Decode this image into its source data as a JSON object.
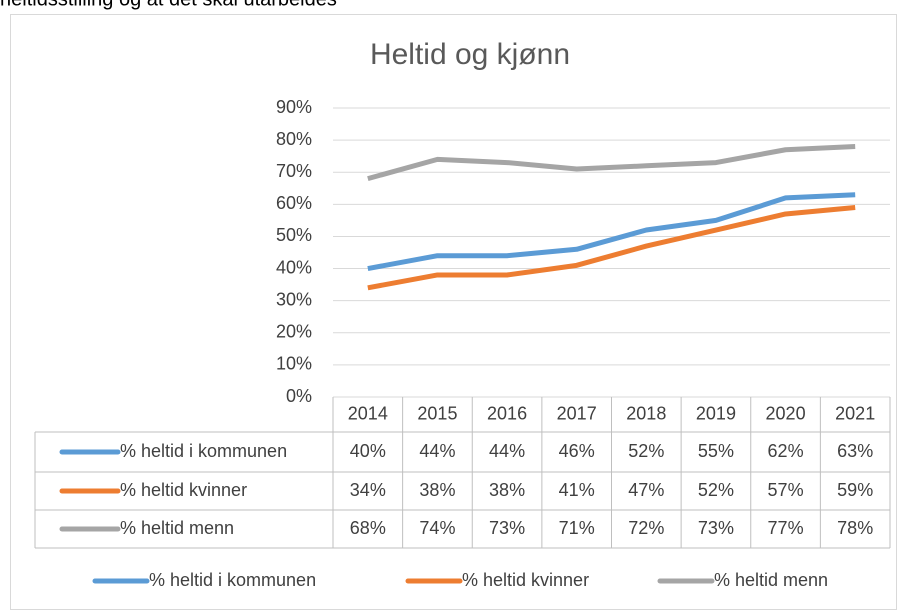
{
  "text_above": "heltidsstilling og at det skal utarbeides",
  "chart_data": {
    "type": "line",
    "title": "Heltid og kjønn",
    "categories": [
      "2014",
      "2015",
      "2016",
      "2017",
      "2018",
      "2019",
      "2020",
      "2021"
    ],
    "series": [
      {
        "name": "% heltid i kommunen",
        "color": "#5b9bd5",
        "values": [
          40,
          44,
          44,
          46,
          52,
          55,
          62,
          63
        ],
        "value_labels": [
          "40%",
          "44%",
          "44%",
          "46%",
          "52%",
          "55%",
          "62%",
          "63%"
        ]
      },
      {
        "name": "% heltid kvinner",
        "color": "#ed7d31",
        "values": [
          34,
          38,
          38,
          41,
          47,
          52,
          57,
          59
        ],
        "value_labels": [
          "34%",
          "38%",
          "38%",
          "41%",
          "47%",
          "52%",
          "57%",
          "59%"
        ]
      },
      {
        "name": "% heltid menn",
        "color": "#a5a5a5",
        "values": [
          68,
          74,
          73,
          71,
          72,
          73,
          77,
          78
        ],
        "value_labels": [
          "68%",
          "74%",
          "73%",
          "71%",
          "72%",
          "73%",
          "77%",
          "78%"
        ]
      }
    ],
    "ylim": [
      0,
      90
    ],
    "yticks": [
      {
        "value": 0,
        "label": "0%"
      },
      {
        "value": 10,
        "label": "10%"
      },
      {
        "value": 20,
        "label": "20%"
      },
      {
        "value": 30,
        "label": "30%"
      },
      {
        "value": 40,
        "label": "40%"
      },
      {
        "value": 50,
        "label": "50%"
      },
      {
        "value": 60,
        "label": "60%"
      },
      {
        "value": 70,
        "label": "70%"
      },
      {
        "value": 80,
        "label": "80%"
      },
      {
        "value": 90,
        "label": "90%"
      }
    ],
    "grid": true,
    "legend": "bottom",
    "data_table": true
  }
}
